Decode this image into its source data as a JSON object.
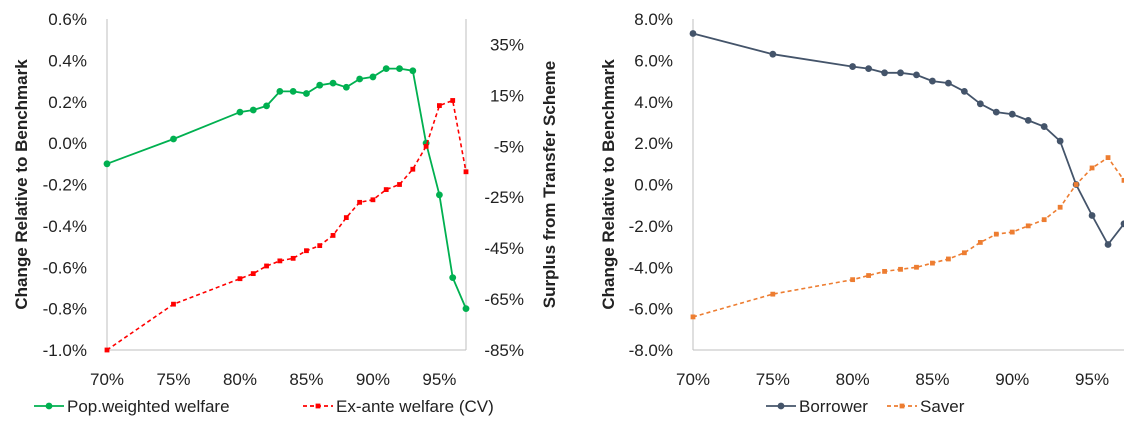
{
  "chart_data": [
    {
      "type": "line",
      "title": "",
      "xlabel": "",
      "ylabel": "Change Relative to Benchmark",
      "y2label": "Surplus from Transfer Scheme",
      "xlim": [
        0.7,
        0.97
      ],
      "ylim": [
        -0.01,
        0.006
      ],
      "y2lim": [
        -0.85,
        0.45
      ],
      "x_ticks": [
        0.7,
        0.75,
        0.8,
        0.85,
        0.9,
        0.95
      ],
      "x_tick_labels": [
        "70%",
        "75%",
        "80%",
        "85%",
        "90%",
        "95%"
      ],
      "y_ticks": [
        0.006,
        0.004,
        0.002,
        0.0,
        -0.002,
        -0.004,
        -0.006,
        -0.008,
        -0.01
      ],
      "y_tick_labels": [
        "0.6%",
        "0.4%",
        "0.2%",
        "0.0%",
        "-0.2%",
        "-0.4%",
        "-0.6%",
        "-0.8%",
        "-1.0%"
      ],
      "y2_ticks": [
        0.35,
        0.15,
        -0.05,
        -0.25,
        -0.45,
        -0.65,
        -0.85
      ],
      "y2_tick_labels": [
        "35%",
        "15%",
        "-5%",
        "-25%",
        "-45%",
        "-65%",
        "-85%"
      ],
      "grid": false,
      "legend": "bottom",
      "series": [
        {
          "name": "Pop.weighted welfare",
          "axis": "left",
          "color": "#00b050",
          "style": "solid",
          "marker": "circle",
          "x": [
            0.7,
            0.75,
            0.8,
            0.81,
            0.82,
            0.83,
            0.84,
            0.85,
            0.86,
            0.87,
            0.88,
            0.89,
            0.9,
            0.91,
            0.92,
            0.93,
            0.94,
            0.95,
            0.96,
            0.97
          ],
          "y": [
            -0.001,
            0.0002,
            0.0015,
            0.0016,
            0.0018,
            0.0025,
            0.0025,
            0.0024,
            0.0028,
            0.0029,
            0.0027,
            0.0031,
            0.0032,
            0.0036,
            0.0036,
            0.0035,
            0.0,
            -0.0025,
            -0.0065,
            -0.008
          ]
        },
        {
          "name": "Ex-ante welfare (CV)",
          "axis": "right",
          "color": "#ff0000",
          "style": "dashed",
          "marker": "square",
          "x": [
            0.7,
            0.75,
            0.8,
            0.81,
            0.82,
            0.83,
            0.84,
            0.85,
            0.86,
            0.87,
            0.88,
            0.89,
            0.9,
            0.91,
            0.92,
            0.93,
            0.94,
            0.95,
            0.96,
            0.97
          ],
          "y": [
            -0.85,
            -0.67,
            -0.57,
            -0.55,
            -0.52,
            -0.5,
            -0.49,
            -0.46,
            -0.44,
            -0.4,
            -0.33,
            -0.27,
            -0.26,
            -0.22,
            -0.2,
            -0.14,
            -0.05,
            0.11,
            0.13,
            -0.15
          ]
        }
      ]
    },
    {
      "type": "line",
      "title": "",
      "xlabel": "",
      "ylabel": "Change Relative to Benchmark",
      "xlim": [
        0.7,
        0.97
      ],
      "ylim": [
        -0.08,
        0.08
      ],
      "x_ticks": [
        0.7,
        0.75,
        0.8,
        0.85,
        0.9,
        0.95
      ],
      "x_tick_labels": [
        "70%",
        "75%",
        "80%",
        "85%",
        "90%",
        "95%"
      ],
      "y_ticks": [
        0.08,
        0.06,
        0.04,
        0.02,
        0.0,
        -0.02,
        -0.04,
        -0.06,
        -0.08
      ],
      "y_tick_labels": [
        "8.0%",
        "6.0%",
        "4.0%",
        "2.0%",
        "0.0%",
        "-2.0%",
        "-4.0%",
        "-6.0%",
        "-8.0%"
      ],
      "grid": false,
      "legend": "bottom",
      "series": [
        {
          "name": "Borrower",
          "color": "#44546a",
          "style": "solid",
          "marker": "circle",
          "x": [
            0.7,
            0.75,
            0.8,
            0.81,
            0.82,
            0.83,
            0.84,
            0.85,
            0.86,
            0.87,
            0.88,
            0.89,
            0.9,
            0.91,
            0.92,
            0.93,
            0.94,
            0.95,
            0.96,
            0.97
          ],
          "y": [
            0.073,
            0.063,
            0.057,
            0.056,
            0.054,
            0.054,
            0.053,
            0.05,
            0.049,
            0.045,
            0.039,
            0.035,
            0.034,
            0.031,
            0.028,
            0.021,
            0.0,
            -0.015,
            -0.029,
            -0.019
          ]
        },
        {
          "name": "Saver",
          "color": "#ed7d31",
          "style": "dashed",
          "marker": "square",
          "x": [
            0.7,
            0.75,
            0.8,
            0.81,
            0.82,
            0.83,
            0.84,
            0.85,
            0.86,
            0.87,
            0.88,
            0.89,
            0.9,
            0.91,
            0.92,
            0.93,
            0.94,
            0.95,
            0.96,
            0.97
          ],
          "y": [
            -0.064,
            -0.053,
            -0.046,
            -0.044,
            -0.042,
            -0.041,
            -0.04,
            -0.038,
            -0.036,
            -0.033,
            -0.028,
            -0.024,
            -0.023,
            -0.02,
            -0.017,
            -0.011,
            0.0,
            0.008,
            0.013,
            0.002
          ]
        }
      ]
    }
  ]
}
